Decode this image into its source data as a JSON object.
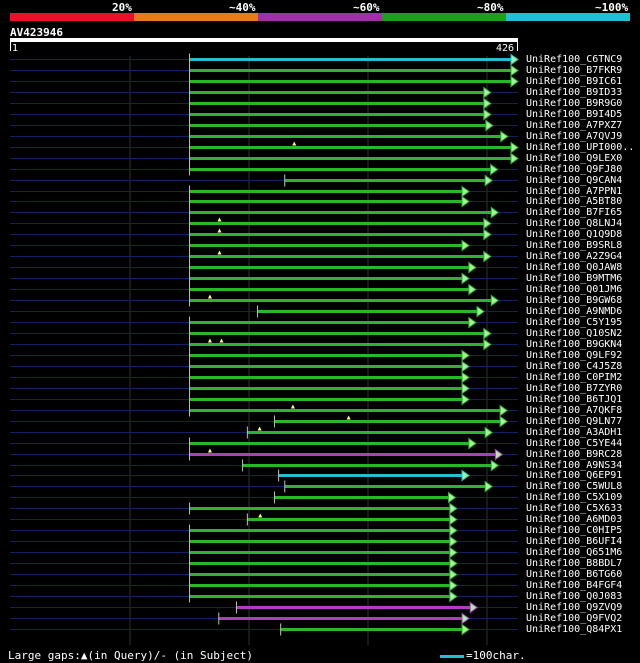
{
  "scale": {
    "labels": [
      "20%",
      "~40%",
      "~60%",
      "~80%",
      "~100%"
    ],
    "colors": [
      "#e8102a",
      "#e87a1a",
      "#a030a8",
      "#1aa01a",
      "#20c0d0"
    ]
  },
  "query": {
    "id": "AV423946",
    "start": "1",
    "end": "426",
    "length": 426
  },
  "colors": {
    "cyan": "#20c0d0",
    "green": "#2bb52b",
    "magenta": "#b03cc0",
    "arrow_fill": "#a8f0a0",
    "gap_marker": "#ffff80",
    "grid": "#303030",
    "row_line": "#102060"
  },
  "hits": [
    {
      "name": "UniRef100_C6TNC9",
      "start": 264,
      "end": 747,
      "color": "cyan",
      "gaps": []
    },
    {
      "name": "UniRef100_B7FKR9",
      "start": 264,
      "end": 747,
      "color": "green",
      "gaps": []
    },
    {
      "name": "UniRef100_B9IC61",
      "start": 264,
      "end": 747,
      "color": "green",
      "gaps": []
    },
    {
      "name": "UniRef100_B9ID33",
      "start": 264,
      "end": 707,
      "color": "green",
      "gaps": []
    },
    {
      "name": "UniRef100_B9R9G0",
      "start": 264,
      "end": 707,
      "color": "green",
      "gaps": []
    },
    {
      "name": "UniRef100_B9I4D5",
      "start": 264,
      "end": 707,
      "color": "green",
      "gaps": []
    },
    {
      "name": "UniRef100_A7PXZ7",
      "start": 264,
      "end": 710,
      "color": "green",
      "gaps": []
    },
    {
      "name": "UniRef100_A7QVJ9",
      "start": 264,
      "end": 732,
      "color": "green",
      "gaps": []
    },
    {
      "name": "UniRef100_UPI000..",
      "start": 264,
      "end": 747,
      "color": "green",
      "gaps": [
        418
      ]
    },
    {
      "name": "UniRef100_Q9LEX0",
      "start": 264,
      "end": 747,
      "color": "green",
      "gaps": []
    },
    {
      "name": "UniRef100_Q9FJ80",
      "start": 264,
      "end": 717,
      "color": "green",
      "gaps": []
    },
    {
      "name": "UniRef100_Q9CAN4",
      "start": 404,
      "end": 709,
      "color": "green",
      "gaps": []
    },
    {
      "name": "UniRef100_A7PPN1",
      "start": 264,
      "end": 675,
      "color": "green",
      "gaps": []
    },
    {
      "name": "UniRef100_A5BT80",
      "start": 264,
      "end": 675,
      "color": "green",
      "gaps": []
    },
    {
      "name": "UniRef100_B7FI65",
      "start": 264,
      "end": 718,
      "color": "green",
      "gaps": []
    },
    {
      "name": "UniRef100_Q8LNJ4",
      "start": 264,
      "end": 707,
      "color": "green",
      "gaps": [
        308
      ]
    },
    {
      "name": "UniRef100_Q1Q9D8",
      "start": 264,
      "end": 707,
      "color": "green",
      "gaps": [
        308
      ]
    },
    {
      "name": "UniRef100_B9SRL8",
      "start": 264,
      "end": 675,
      "color": "green",
      "gaps": []
    },
    {
      "name": "UniRef100_A2Z9G4",
      "start": 264,
      "end": 707,
      "color": "green",
      "gaps": [
        308
      ]
    },
    {
      "name": "UniRef100_Q0JAW8",
      "start": 264,
      "end": 685,
      "color": "green",
      "gaps": []
    },
    {
      "name": "UniRef100_B9MTM6",
      "start": 264,
      "end": 675,
      "color": "green",
      "gaps": []
    },
    {
      "name": "UniRef100_Q01JM6",
      "start": 264,
      "end": 685,
      "color": "green",
      "gaps": []
    },
    {
      "name": "UniRef100_B9GW68",
      "start": 264,
      "end": 718,
      "color": "green",
      "gaps": [
        294
      ]
    },
    {
      "name": "UniRef100_A9NMD6",
      "start": 364,
      "end": 697,
      "color": "green",
      "gaps": []
    },
    {
      "name": "UniRef100_C5Y195",
      "start": 264,
      "end": 685,
      "color": "green",
      "gaps": []
    },
    {
      "name": "UniRef100_Q10SN2",
      "start": 264,
      "end": 707,
      "color": "green",
      "gaps": []
    },
    {
      "name": "UniRef100_B9GKN4",
      "start": 264,
      "end": 707,
      "color": "green",
      "gaps": [
        294,
        311
      ]
    },
    {
      "name": "UniRef100_Q9LF92",
      "start": 264,
      "end": 675,
      "color": "green",
      "gaps": []
    },
    {
      "name": "UniRef100_C4J5Z8",
      "start": 264,
      "end": 675,
      "color": "green",
      "gaps": []
    },
    {
      "name": "UniRef100_C0PIM2",
      "start": 264,
      "end": 675,
      "color": "green",
      "gaps": []
    },
    {
      "name": "UniRef100_B7ZYR0",
      "start": 264,
      "end": 675,
      "color": "green",
      "gaps": []
    },
    {
      "name": "UniRef100_B6TJQ1",
      "start": 264,
      "end": 675,
      "color": "green",
      "gaps": []
    },
    {
      "name": "UniRef100_A7QKF8",
      "start": 264,
      "end": 731,
      "color": "green",
      "gaps": [
        416
      ]
    },
    {
      "name": "UniRef100_Q9LN77",
      "start": 389,
      "end": 731,
      "color": "green",
      "gaps": [
        498
      ]
    },
    {
      "name": "UniRef100_A3ADH1",
      "start": 349,
      "end": 709,
      "color": "green",
      "gaps": [
        367
      ]
    },
    {
      "name": "UniRef100_C5YE44",
      "start": 264,
      "end": 685,
      "color": "green",
      "gaps": []
    },
    {
      "name": "UniRef100_B9RC28",
      "start": 264,
      "end": 724,
      "color": "magenta",
      "gaps": [
        294
      ]
    },
    {
      "name": "UniRef100_A9NS34",
      "start": 342,
      "end": 718,
      "color": "green",
      "gaps": []
    },
    {
      "name": "UniRef100_Q6EP91",
      "start": 395,
      "end": 675,
      "color": "cyan",
      "gaps": []
    },
    {
      "name": "UniRef100_C5WUL8",
      "start": 404,
      "end": 709,
      "color": "green",
      "gaps": []
    },
    {
      "name": "UniRef100_C5X109",
      "start": 389,
      "end": 655,
      "color": "green",
      "gaps": []
    },
    {
      "name": "UniRef100_C5X633",
      "start": 264,
      "end": 657,
      "color": "green",
      "gaps": []
    },
    {
      "name": "UniRef100_A6MD03",
      "start": 349,
      "end": 657,
      "color": "green",
      "gaps": [
        368
      ]
    },
    {
      "name": "UniRef100_C0HIP5",
      "start": 264,
      "end": 657,
      "color": "green",
      "gaps": []
    },
    {
      "name": "UniRef100_B6UFI4",
      "start": 264,
      "end": 657,
      "color": "green",
      "gaps": []
    },
    {
      "name": "UniRef100_Q651M6",
      "start": 264,
      "end": 657,
      "color": "green",
      "gaps": []
    },
    {
      "name": "UniRef100_B8BDL7",
      "start": 264,
      "end": 657,
      "color": "green",
      "gaps": []
    },
    {
      "name": "UniRef100_B6TG60",
      "start": 264,
      "end": 657,
      "color": "green",
      "gaps": []
    },
    {
      "name": "UniRef100_B4FGF4",
      "start": 264,
      "end": 657,
      "color": "green",
      "gaps": []
    },
    {
      "name": "UniRef100_Q0J083",
      "start": 264,
      "end": 657,
      "color": "green",
      "gaps": []
    },
    {
      "name": "UniRef100_Q9ZVQ9",
      "start": 333,
      "end": 687,
      "color": "magenta",
      "gaps": []
    },
    {
      "name": "UniRef100_Q9FVQ2",
      "start": 307,
      "end": 675,
      "color": "magenta",
      "gaps": []
    },
    {
      "name": "UniRef100_Q84PX1",
      "start": 398,
      "end": 675,
      "color": "green",
      "gaps": []
    }
  ],
  "footer": {
    "legend_text": "Large gaps:▲(in Query)/- (in Subject)",
    "unit_label": "=100char."
  }
}
